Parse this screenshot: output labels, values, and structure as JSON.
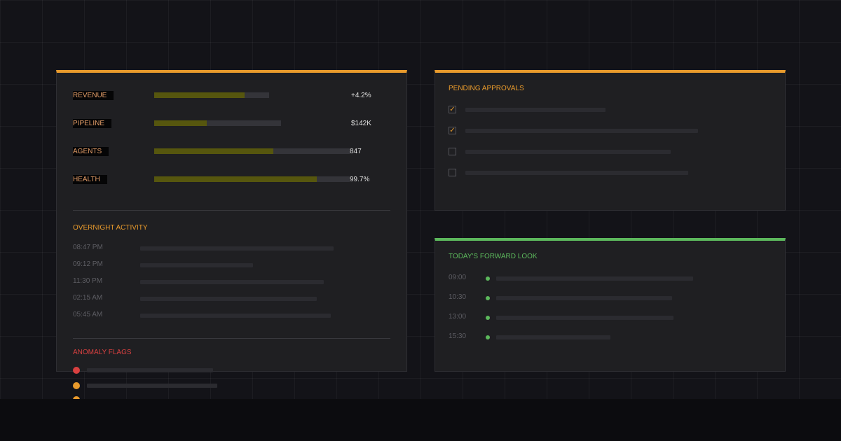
{
  "colors": {
    "accent_orange": "#e89a2c",
    "accent_green": "#5cb85c",
    "alert_red": "#d94040",
    "bar_fill": "#56560e"
  },
  "metrics": [
    {
      "label": "REVENUE",
      "value": "+4.2%",
      "fill": 0.79
    },
    {
      "label": "PIPELINE",
      "value": "$142K",
      "fill": 0.41
    },
    {
      "label": "AGENTS",
      "value": "847",
      "fill": 0.61
    },
    {
      "label": "HEALTH",
      "value": "99.7%",
      "fill": 0.83
    }
  ],
  "overnight": {
    "title": "OVERNIGHT ACTIVITY",
    "times": [
      "08:47 PM",
      "09:12 PM",
      "11:30 PM",
      "02:15 AM",
      "05:45 AM"
    ]
  },
  "anomaly": {
    "title": "ANOMALY FLAGS",
    "severities": [
      "critical",
      "warning",
      "warning"
    ]
  },
  "approvals": {
    "title": "PENDING APPROVALS",
    "items": [
      {
        "checked": true
      },
      {
        "checked": true
      },
      {
        "checked": false
      },
      {
        "checked": false
      }
    ]
  },
  "forward": {
    "title": "TODAY'S FORWARD LOOK",
    "times": [
      "09:00",
      "10:30",
      "13:00",
      "15:30"
    ]
  }
}
